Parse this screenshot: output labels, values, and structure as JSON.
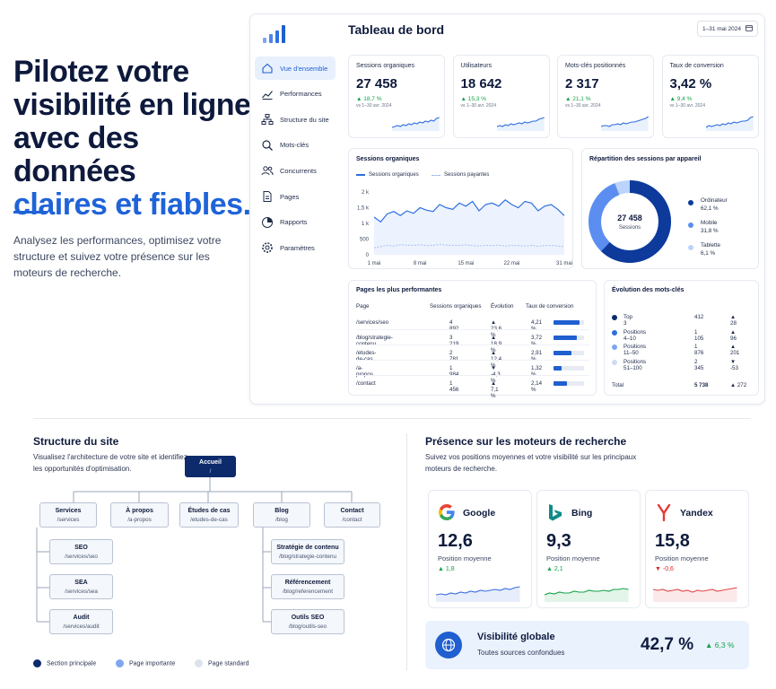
{
  "hero": {
    "title_line1": "Pilotez votre",
    "title_line2": "visibilité en ligne",
    "title_line3": "avec des données",
    "title_accent": "claires et fiables.",
    "subtitle": "Analysez les performances, optimisez votre structure et suivez votre présence sur les moteurs de recherche."
  },
  "sidebar": {
    "items": [
      {
        "label": "Vue d'ensemble",
        "icon": "home-icon",
        "active": true
      },
      {
        "label": "Performances",
        "icon": "trend-icon"
      },
      {
        "label": "Structure du site",
        "icon": "sitemap-icon"
      },
      {
        "label": "Mots-clés",
        "icon": "search-icon"
      },
      {
        "label": "Concurrents",
        "icon": "users-icon"
      },
      {
        "label": "Pages",
        "icon": "page-icon"
      },
      {
        "label": "Rapports",
        "icon": "report-icon"
      },
      {
        "label": "Paramètres",
        "icon": "gear-icon"
      }
    ]
  },
  "header": {
    "title": "Tableau de bord",
    "date_range": "1–31 mai 2024"
  },
  "kpis": [
    {
      "label": "Sessions organiques",
      "value": "27 458",
      "delta": "▲ 18,7 %",
      "note": "vs 1–30 avr. 2024"
    },
    {
      "label": "Utilisateurs",
      "value": "18 642",
      "delta": "▲ 15,3 %",
      "note": "vs 1–30 avr. 2024"
    },
    {
      "label": "Mots-clés positionnés",
      "value": "2 317",
      "delta": "▲ 21,1 %",
      "note": "vs 1–30 avr. 2024"
    },
    {
      "label": "Taux de conversion",
      "value": "3,42 %",
      "delta": "▲ 9,4 %",
      "note": "vs 1–30 avr. 2024"
    }
  ],
  "sessions_chart": {
    "title": "Sessions organiques",
    "legend_organic": "Sessions organiques",
    "legend_paid": "Sessions payantes",
    "y_ticks": [
      "2 k",
      "1,5 k",
      "1 k",
      "500",
      "0"
    ],
    "x_ticks": [
      "1 mai",
      "8 mai",
      "15 mai",
      "22 mai",
      "31 mai"
    ]
  },
  "device": {
    "title": "Répartition des sessions par appareil",
    "center_value": "27 458",
    "center_label": "Sessions",
    "items": [
      {
        "label": "Ordinateur",
        "pct": "62,1 %",
        "color": "#0d3a9b"
      },
      {
        "label": "Mobile",
        "pct": "31,8 %",
        "color": "#5b8ef0"
      },
      {
        "label": "Tablette",
        "pct": "6,1 %",
        "color": "#bcd3fb"
      }
    ]
  },
  "top_pages": {
    "title": "Pages les plus performantes",
    "headers": [
      "Page",
      "Sessions organiques",
      "Évolution",
      "Taux de conversion"
    ],
    "rows": [
      {
        "page": "/services/seo",
        "sessions": "4 892",
        "evo": "▲ 23,6 %",
        "up": true,
        "conv": "4,21 %",
        "bar": 0.85
      },
      {
        "page": "/blog/strategie-contenu",
        "sessions": "3 219",
        "evo": "▲ 18,9 %",
        "up": true,
        "conv": "3,72 %",
        "bar": 0.75
      },
      {
        "page": "/etudes-de-cas",
        "sessions": "2 781",
        "evo": "▲ 12,4 %",
        "up": true,
        "conv": "2,91 %",
        "bar": 0.59
      },
      {
        "page": "/a-propos",
        "sessions": "1 984",
        "evo": "▼ -4,3 %",
        "up": false,
        "conv": "1,32 %",
        "bar": 0.27
      },
      {
        "page": "/contact",
        "sessions": "1 456",
        "evo": "▲ 7,1 %",
        "up": true,
        "conv": "2,14 %",
        "bar": 0.43
      }
    ]
  },
  "keywords": {
    "title": "Évolution des mots-clés",
    "rows": [
      {
        "label": "Top 3",
        "value": "412",
        "delta": "▲ 28",
        "up": true,
        "color": "#0d2a6b"
      },
      {
        "label": "Positions 4–10",
        "value": "1 105",
        "delta": "▲ 96",
        "up": true,
        "color": "#2f6fe0"
      },
      {
        "label": "Positions 11–50",
        "value": "1 876",
        "delta": "▲ 201",
        "up": true,
        "color": "#7ea6f1"
      },
      {
        "label": "Positions 51–100",
        "value": "2 345",
        "delta": "▼ -53",
        "up": false,
        "color": "#cfdcf5"
      }
    ],
    "total_label": "Total",
    "total_value": "5 738",
    "total_delta": "▲ 272"
  },
  "structure": {
    "title": "Structure du site",
    "subtitle": "Visualisez l'architecture de votre site et identifiez les opportunités d'optimisation.",
    "root": {
      "name": "Accueil",
      "path": "/"
    },
    "level1": [
      {
        "name": "Services",
        "path": "/services"
      },
      {
        "name": "À propos",
        "path": "/a-propos"
      },
      {
        "name": "Études de cas",
        "path": "/etudes-de-cas"
      },
      {
        "name": "Blog",
        "path": "/blog"
      },
      {
        "name": "Contact",
        "path": "/contact"
      }
    ],
    "services_children": [
      {
        "name": "SEO",
        "path": "/services/seo"
      },
      {
        "name": "SEA",
        "path": "/services/sea"
      },
      {
        "name": "Audit",
        "path": "/services/audit"
      }
    ],
    "blog_children": [
      {
        "name": "Stratégie de contenu",
        "path": "/blog/strategie-contenu"
      },
      {
        "name": "Référencement",
        "path": "/blog/referencement"
      },
      {
        "name": "Outils SEO",
        "path": "/blog/outils-seo"
      }
    ],
    "legend": [
      {
        "label": "Section principale",
        "color": "#0d2a6b"
      },
      {
        "label": "Page importante",
        "color": "#7ea6f1"
      },
      {
        "label": "Page standard",
        "color": "#dde3ec"
      }
    ]
  },
  "search": {
    "title": "Présence sur les moteurs de recherche",
    "subtitle": "Suivez vos positions moyennes et votre visibilité sur les principaux moteurs de recherche.",
    "engines": [
      {
        "name": "Google",
        "value": "12,6",
        "label": "Position moyenne",
        "delta": "▲ 1,8",
        "up": true,
        "color": "#3b6fe0"
      },
      {
        "name": "Bing",
        "value": "9,3",
        "label": "Position moyenne",
        "delta": "▲ 2,1",
        "up": true,
        "color": "#16a34a"
      },
      {
        "name": "Yandex",
        "value": "15,8",
        "label": "Position moyenne",
        "delta": "▼ -0,6",
        "up": false,
        "color": "#e04848"
      }
    ],
    "visibility": {
      "title": "Visibilité globale",
      "subtitle": "Toutes sources confondues",
      "value": "42,7 %",
      "delta": "▲ 6,3 %"
    }
  }
}
